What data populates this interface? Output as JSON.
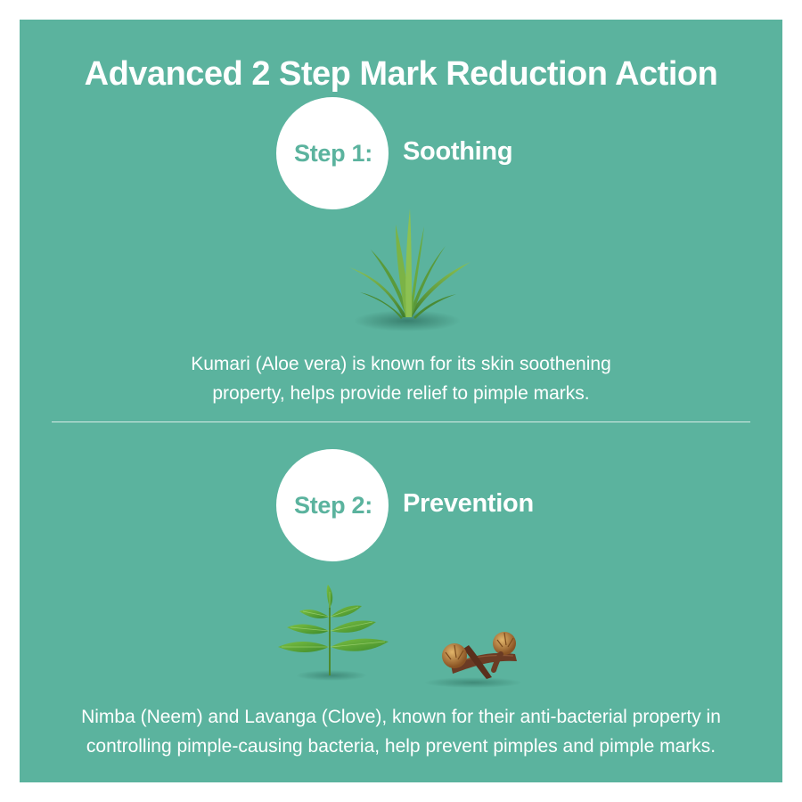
{
  "title": "Advanced 2 Step Mark Reduction Action",
  "steps": [
    {
      "label": "Step 1:",
      "name": "Soothing",
      "description_lines": [
        "Kumari (Aloe vera) is known for its skin soothening",
        "property, helps provide relief to pimple marks."
      ],
      "illustrations": [
        "aloe-vera-icon"
      ]
    },
    {
      "label": "Step 2:",
      "name": "Prevention",
      "description_lines": [
        "Nimba (Neem) and Lavanga (Clove), known for their anti-bacterial property in",
        "controlling pimple-causing bacteria, help prevent pimples and pimple marks."
      ],
      "illustrations": [
        "neem-leaves-icon",
        "clove-icon"
      ]
    }
  ],
  "colors": {
    "panel_background": "#5bb39e",
    "text": "#ffffff",
    "circle": "#ffffff",
    "step_label": "#5bb39e"
  }
}
